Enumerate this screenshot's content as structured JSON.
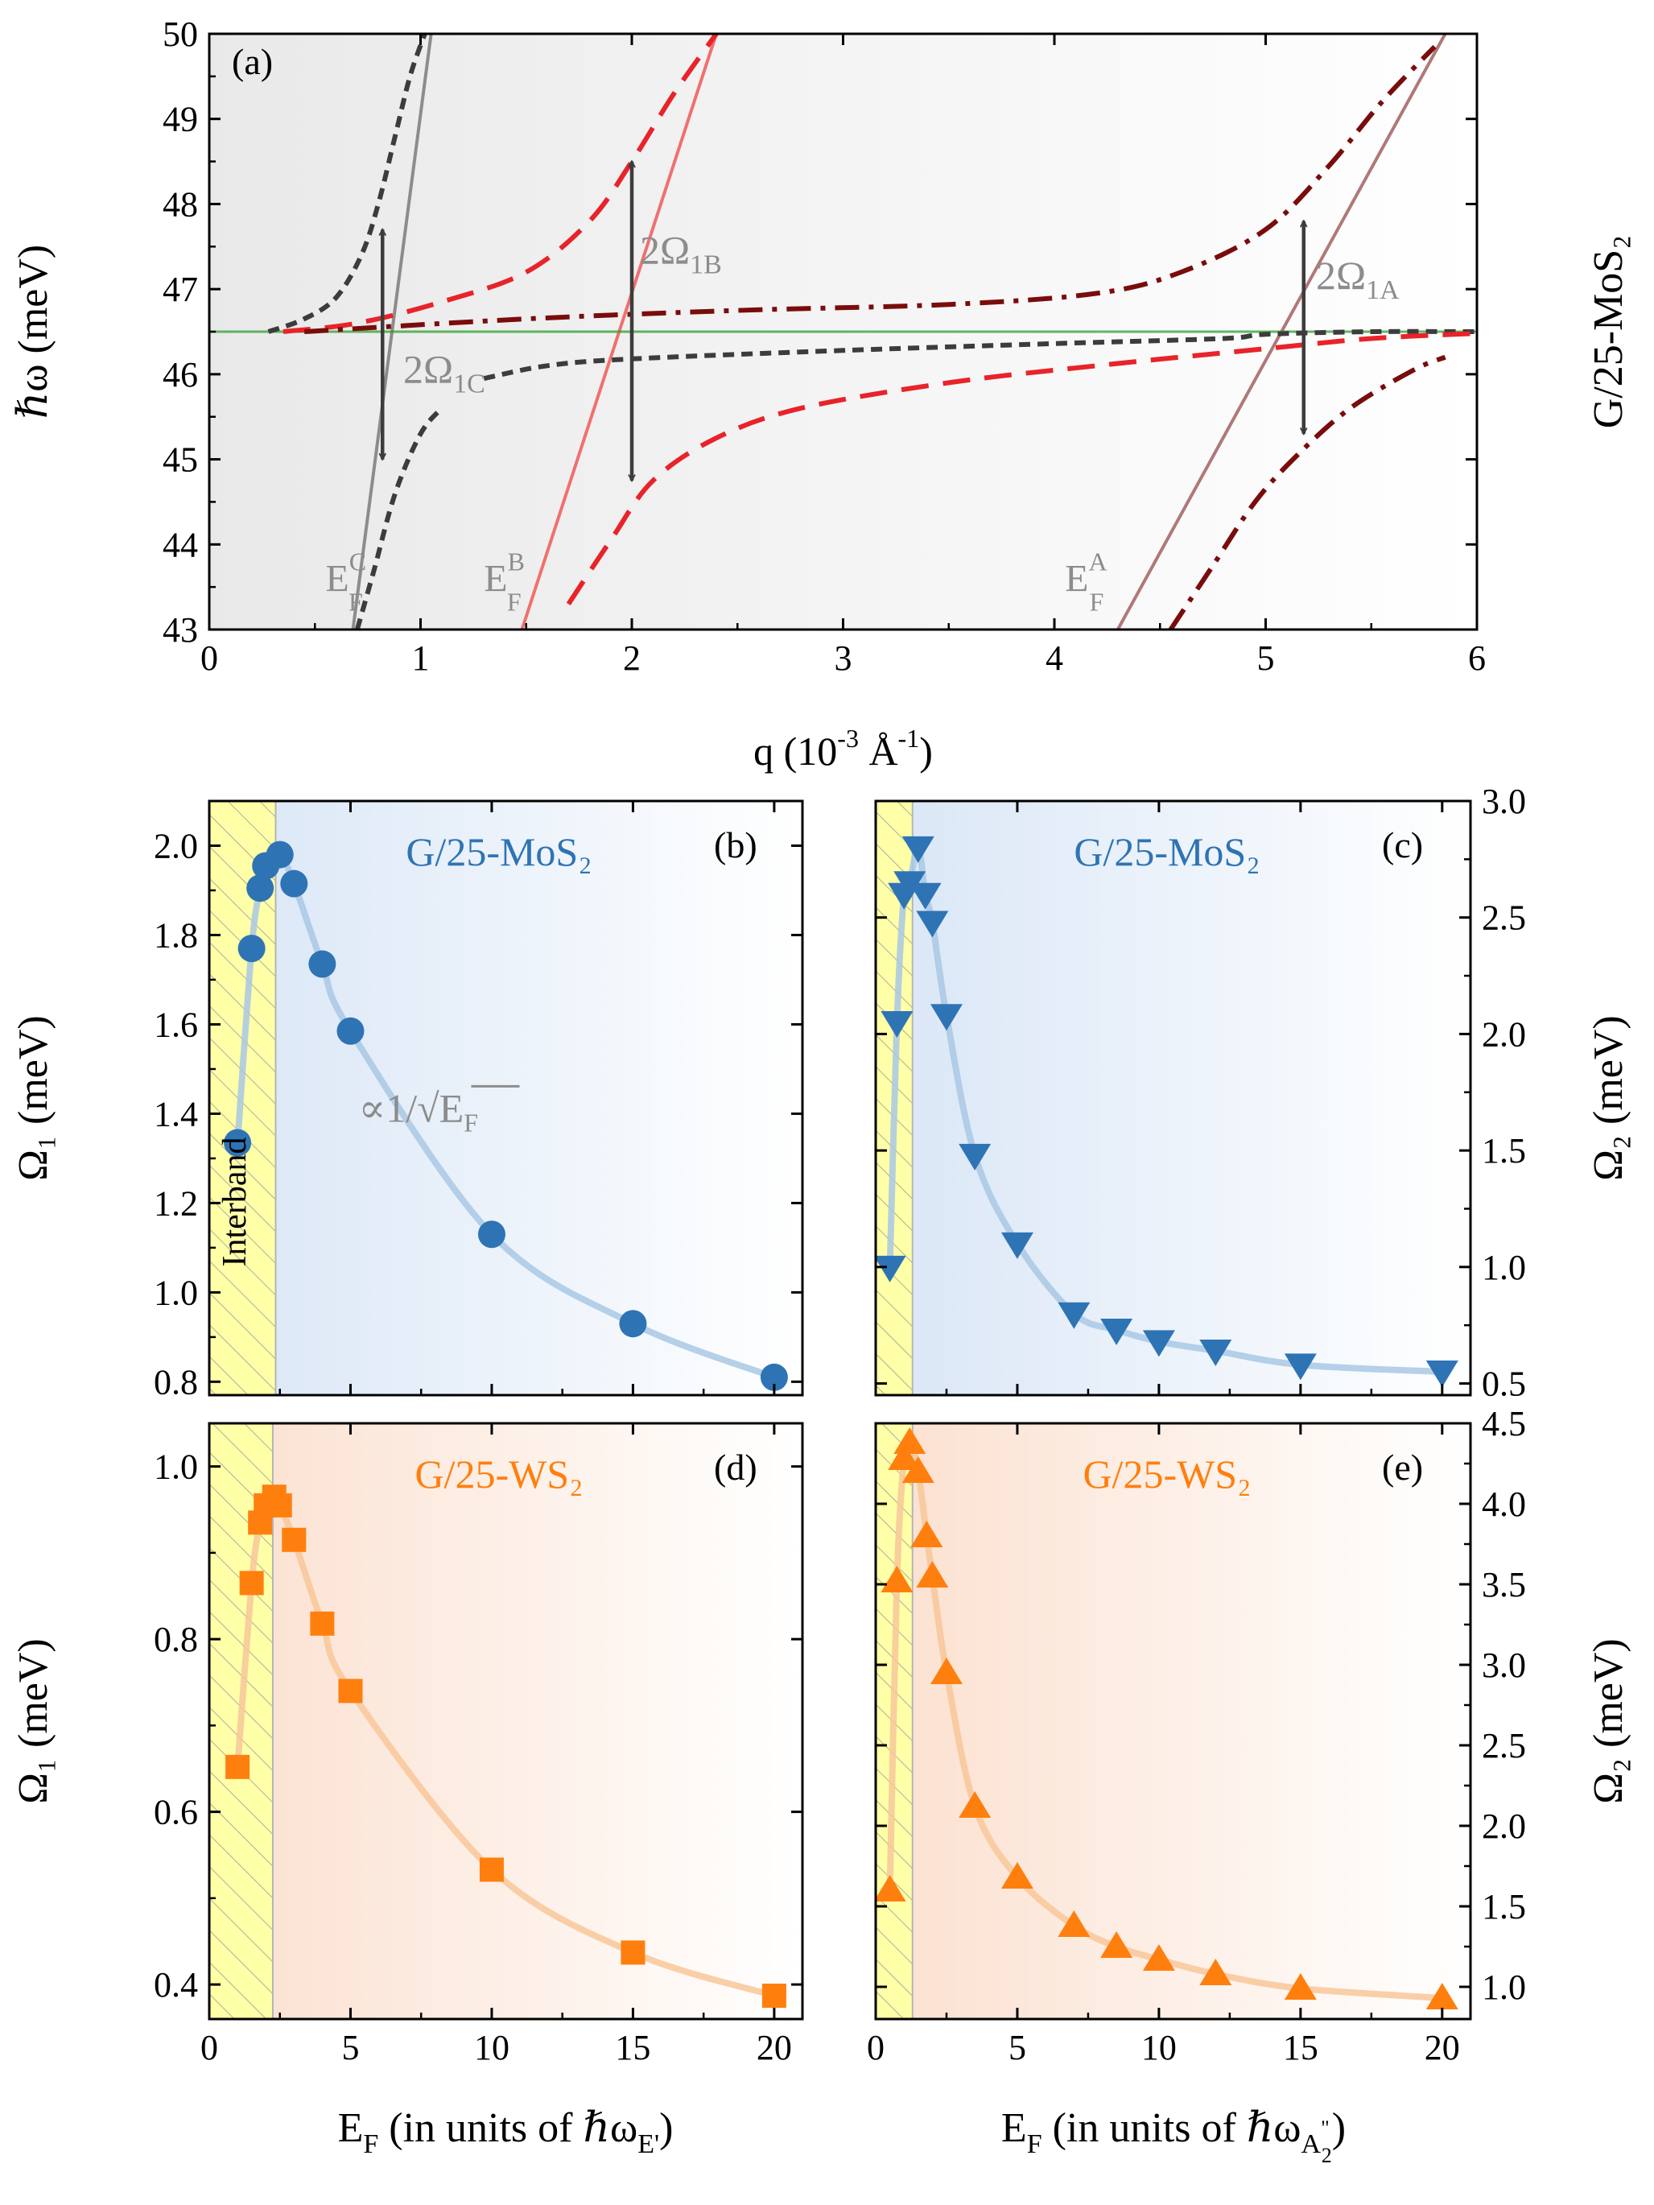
{
  "colors": {
    "blue": "#2e74b5",
    "blue_fit": "#a9c8e4",
    "orange": "#ff7f0e",
    "orange_fit": "#f8c79a",
    "green": "#2ca02c",
    "red": "#e8232a",
    "darkred": "#7a0c0c",
    "grey": "#3c3c3c",
    "lightgrey": "#8c8c8c",
    "pink": "#f07070",
    "mauve": "#b07878",
    "interband": "#ffffa8"
  },
  "chart_data": [
    {
      "id": "a",
      "type": "line",
      "panel_label": "(a)",
      "xlabel_prefix": "q (10",
      "xlabel_exp": "-3",
      "xlabel_mid": " Å",
      "xlabel_exp2": "-1",
      "xlabel_suffix": ")",
      "ylabel": "ℏω (meV)",
      "right_label": "G/25-MoS₂",
      "xlim": [
        0,
        6
      ],
      "ylim": [
        43,
        50
      ],
      "xticks": [
        "0",
        "1",
        "2",
        "3",
        "4",
        "5",
        "6"
      ],
      "yticks": [
        "43",
        "44",
        "45",
        "46",
        "47",
        "48",
        "49",
        "50"
      ],
      "phonon_energy": 46.5,
      "fermi_lines": [
        {
          "name": "C",
          "color": "lightgrey",
          "points": [
            [
              0.68,
              43
            ],
            [
              1.05,
              50
            ]
          ]
        },
        {
          "name": "B",
          "color": "pink",
          "points": [
            [
              1.48,
              43
            ],
            [
              2.4,
              50
            ]
          ]
        },
        {
          "name": "A",
          "color": "mauve",
          "points": [
            [
              4.3,
              43
            ],
            [
              5.85,
              50
            ]
          ]
        }
      ],
      "fermi_labels": [
        {
          "E": "E",
          "sup": "C",
          "sub": "F",
          "x": 0.55,
          "y": 43.45
        },
        {
          "E": "E",
          "sup": "B",
          "sub": "F",
          "x": 1.3,
          "y": 43.45
        },
        {
          "E": "E",
          "sup": "A",
          "sub": "F",
          "x": 4.05,
          "y": 43.45
        }
      ],
      "series": [
        {
          "name": "C-upper",
          "style": "short-dash",
          "color": "grey",
          "points": [
            [
              0.28,
              46.5
            ],
            [
              0.45,
              46.65
            ],
            [
              0.6,
              46.9
            ],
            [
              0.72,
              47.4
            ],
            [
              0.8,
              48.0
            ],
            [
              0.88,
              48.8
            ],
            [
              0.95,
              49.5
            ],
            [
              1.02,
              50.0
            ]
          ]
        },
        {
          "name": "C-lower",
          "style": "short-dash",
          "color": "grey",
          "points": [
            [
              0.7,
              43.0
            ],
            [
              0.78,
              43.7
            ],
            [
              0.88,
              44.6
            ],
            [
              1.0,
              45.3
            ],
            [
              1.1,
              45.6
            ]
          ]
        },
        {
          "name": "C-flat",
          "style": "short-dash",
          "color": "grey",
          "points": [
            [
              1.3,
              45.95
            ],
            [
              1.6,
              46.1
            ],
            [
              2.0,
              46.18
            ],
            [
              3.0,
              46.28
            ],
            [
              4.0,
              46.36
            ],
            [
              4.8,
              46.42
            ],
            [
              5.0,
              46.47
            ],
            [
              5.5,
              46.5
            ],
            [
              6.0,
              46.5
            ]
          ]
        },
        {
          "name": "B-upper",
          "style": "dash",
          "color": "red",
          "points": [
            [
              0.35,
              46.5
            ],
            [
              0.7,
              46.6
            ],
            [
              1.1,
              46.85
            ],
            [
              1.5,
              47.2
            ],
            [
              1.8,
              47.8
            ],
            [
              2.0,
              48.5
            ],
            [
              2.2,
              49.3
            ],
            [
              2.4,
              50.0
            ]
          ]
        },
        {
          "name": "B-lower",
          "style": "dash",
          "color": "red",
          "points": [
            [
              1.7,
              43.3
            ],
            [
              1.9,
              44.05
            ],
            [
              2.1,
              44.75
            ],
            [
              2.4,
              45.25
            ],
            [
              2.8,
              45.6
            ],
            [
              3.5,
              45.9
            ],
            [
              4.2,
              46.1
            ],
            [
              5.0,
              46.3
            ],
            [
              5.5,
              46.42
            ],
            [
              6.0,
              46.48
            ]
          ]
        },
        {
          "name": "A-upper",
          "style": "dash-dot",
          "color": "darkred",
          "points": [
            [
              0.45,
              46.5
            ],
            [
              1.5,
              46.65
            ],
            [
              2.5,
              46.75
            ],
            [
              3.5,
              46.82
            ],
            [
              4.2,
              46.95
            ],
            [
              4.6,
              47.2
            ],
            [
              5.0,
              47.7
            ],
            [
              5.3,
              48.45
            ],
            [
              5.55,
              49.2
            ],
            [
              5.8,
              49.85
            ]
          ]
        },
        {
          "name": "A-lower",
          "style": "dash-dot",
          "color": "darkred",
          "points": [
            [
              4.55,
              43.0
            ],
            [
              4.75,
              43.75
            ],
            [
              4.95,
              44.5
            ],
            [
              5.15,
              45.05
            ],
            [
              5.4,
              45.6
            ],
            [
              5.7,
              46.05
            ],
            [
              5.85,
              46.2
            ]
          ]
        }
      ],
      "arrows": [
        {
          "x": 0.82,
          "y1": 45.0,
          "y2": 47.7,
          "label": "2Ω",
          "sub": "1C",
          "lx": 0.88,
          "ly": 45.9
        },
        {
          "x": 2.0,
          "y1": 44.75,
          "y2": 48.5,
          "label": "2Ω",
          "sub": "1B",
          "lx": 2.0,
          "ly": 47.3
        },
        {
          "x": 5.18,
          "y1": 45.3,
          "y2": 47.8,
          "label": "2Ω",
          "sub": "1A",
          "lx": 5.2,
          "ly": 47.0
        }
      ]
    },
    {
      "id": "b",
      "type": "scatter",
      "panel_label": "(b)",
      "material": "G/25-MoS₂",
      "ylabel": "Ω₁ (meV)",
      "xlim": [
        0,
        21
      ],
      "ylim": [
        0.77,
        2.1
      ],
      "xticks": [
        "0",
        "5",
        "10",
        "15",
        "20"
      ],
      "yticks": [
        "0.8",
        "1.0",
        "1.2",
        "1.4",
        "1.6",
        "1.8",
        "2.0"
      ],
      "interband_end": 2.35,
      "interband_label": "Interband",
      "annotation": "∝1/√E",
      "annotation_sub": "F",
      "marker": "circle",
      "x": [
        1.0,
        1.5,
        1.8,
        2.0,
        2.5,
        3.0,
        4.0,
        5.0,
        10.0,
        15.0,
        20.0
      ],
      "y": [
        1.335,
        1.77,
        1.905,
        1.955,
        1.98,
        1.915,
        1.735,
        1.585,
        1.13,
        0.93,
        0.81
      ]
    },
    {
      "id": "c",
      "type": "scatter",
      "panel_label": "(c)",
      "material": "G/25-MoS₂",
      "ylabel": "Ω₂ (meV)",
      "xlim": [
        0,
        21
      ],
      "ylim": [
        0.45,
        3.0
      ],
      "xticks": [
        "0",
        "5",
        "10",
        "15",
        "20"
      ],
      "yticks": [
        "0.5",
        "1.0",
        "1.5",
        "2.0",
        "2.5",
        "3.0"
      ],
      "interband_end": 1.3,
      "marker": "triangle-down",
      "x": [
        0.5,
        0.75,
        1.0,
        1.2,
        1.5,
        1.75,
        2.0,
        2.5,
        3.5,
        5.0,
        7.0,
        8.5,
        10.0,
        12.0,
        15.0,
        20.0
      ],
      "y": [
        1.0,
        2.05,
        2.6,
        2.65,
        2.8,
        2.6,
        2.48,
        2.08,
        1.48,
        1.1,
        0.8,
        0.73,
        0.68,
        0.64,
        0.58,
        0.55
      ]
    },
    {
      "id": "d",
      "type": "scatter",
      "panel_label": "(d)",
      "material": "G/25-WS₂",
      "ylabel": "Ω₁ (meV)",
      "xlim": [
        0,
        21
      ],
      "ylim": [
        0.36,
        1.05
      ],
      "xticks": [
        "0",
        "5",
        "10",
        "15",
        "20"
      ],
      "yticks": [
        "0.4",
        "0.6",
        "0.8",
        "1.0"
      ],
      "interband_end": 2.25,
      "marker": "square",
      "x": [
        1.0,
        1.5,
        1.8,
        2.0,
        2.3,
        2.5,
        3.0,
        4.0,
        5.0,
        10.0,
        15.0,
        20.0
      ],
      "y": [
        0.652,
        0.865,
        0.935,
        0.955,
        0.965,
        0.955,
        0.915,
        0.818,
        0.74,
        0.533,
        0.437,
        0.387
      ]
    },
    {
      "id": "e",
      "type": "scatter",
      "panel_label": "(e)",
      "material": "G/25-WS₂",
      "ylabel": "Ω₂ (meV)",
      "xlim": [
        0,
        21
      ],
      "ylim": [
        0.8,
        4.5
      ],
      "xticks": [
        "0",
        "5",
        "10",
        "15",
        "20"
      ],
      "yticks": [
        "1.0",
        "1.5",
        "2.0",
        "2.5",
        "3.0",
        "3.5",
        "4.0",
        "4.5"
      ],
      "interband_end": 1.3,
      "marker": "triangle-up",
      "x": [
        0.5,
        0.75,
        1.0,
        1.2,
        1.5,
        1.8,
        2.0,
        2.5,
        3.5,
        5.0,
        7.0,
        8.5,
        10.0,
        12.0,
        15.0,
        20.0
      ],
      "y": [
        1.6,
        3.52,
        4.28,
        4.38,
        4.2,
        3.8,
        3.55,
        2.95,
        2.12,
        1.68,
        1.38,
        1.25,
        1.17,
        1.08,
        0.99,
        0.93
      ]
    }
  ],
  "xlabels": {
    "left": {
      "prefix": "E",
      "sub": "F",
      "middle": " (in units of ℏω",
      "sub2": "E'",
      "suffix": ")"
    },
    "right": {
      "prefix": "E",
      "sub": "F",
      "middle": " (in units of ℏω",
      "sub2": "A",
      "sub2b": "2",
      "sup2": "\"",
      "suffix": ")"
    }
  }
}
